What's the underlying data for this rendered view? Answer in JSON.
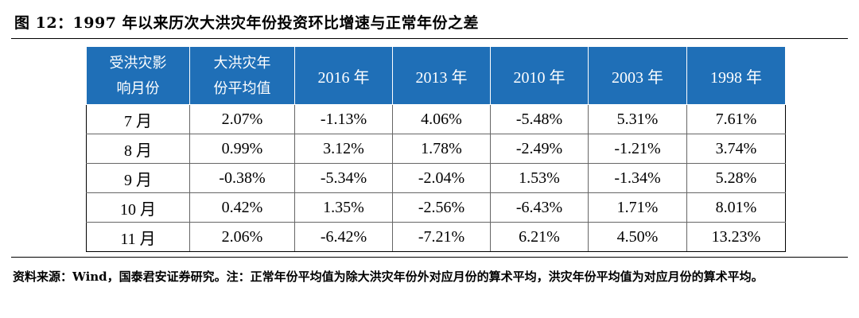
{
  "title": "图 12：1997 年以来历次大洪灾年份投资环比增速与正常年份之差",
  "table": {
    "headers": [
      "受洪灾影响月份",
      "大洪灾年份平均值",
      "2016 年",
      "2013 年",
      "2010 年",
      "2003 年",
      "1998 年"
    ],
    "header_lines": [
      [
        "受洪灾影",
        "响月份"
      ],
      [
        "大洪灾年",
        "份平均值"
      ]
    ],
    "rows": [
      [
        "7 月",
        "2.07%",
        "-1.13%",
        "4.06%",
        "-5.48%",
        "5.31%",
        "7.61%"
      ],
      [
        "8 月",
        "0.99%",
        "3.12%",
        "1.78%",
        "-2.49%",
        "-1.21%",
        "3.74%"
      ],
      [
        "9 月",
        "-0.38%",
        "-5.34%",
        "-2.04%",
        "1.53%",
        "-1.34%",
        "5.28%"
      ],
      [
        "10 月",
        "0.42%",
        "1.35%",
        "-2.56%",
        "-6.43%",
        "1.71%",
        "8.01%"
      ],
      [
        "11 月",
        "2.06%",
        "-6.42%",
        "-7.21%",
        "6.21%",
        "4.50%",
        "13.23%"
      ]
    ]
  },
  "source_note": "资料来源：Wind，国泰君安证券研究。注：正常年份平均值为除大洪灾年份外对应月份的算术平均，洪灾年份平均值为对应月份的算术平均。"
}
